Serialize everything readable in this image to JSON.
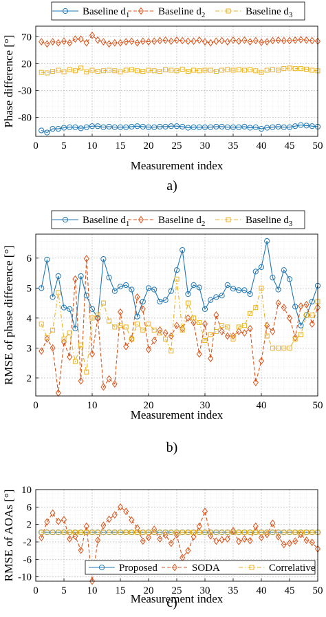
{
  "colors": {
    "d1": "#1f77b4",
    "d2": "#d95319",
    "d3": "#edb120",
    "proposed": "#1f77b4",
    "soda": "#d95319",
    "correlative": "#edb120"
  },
  "icons": {
    "d1": "circle-marker",
    "d2": "diamond-marker",
    "d3": "square-marker"
  },
  "chart_data": [
    {
      "panel": "a)",
      "type": "line",
      "xlabel": "Measurement index",
      "ylabel": "Phase difference [°]",
      "xlim": [
        0,
        50
      ],
      "ylim": [
        -115,
        90
      ],
      "xticks": [
        0,
        5,
        10,
        15,
        20,
        25,
        30,
        35,
        40,
        45,
        50
      ],
      "yticks": [
        70,
        20,
        -30,
        -80
      ],
      "grid": true,
      "legend": {
        "placement": "top-outside"
      },
      "series": [
        {
          "name": "Baseline d",
          "subscript": "1",
          "marker": "circle",
          "line": "solid",
          "values": [
            -104,
            -108,
            -101,
            -101,
            -99,
            -98,
            -98,
            -100,
            -98,
            -96,
            -96,
            -98,
            -97,
            -98,
            -98,
            -98,
            -97,
            -96,
            -97,
            -98,
            -98,
            -97,
            -97,
            -96,
            -96,
            -97,
            -99,
            -98,
            -98,
            -98,
            -98,
            -97,
            -97,
            -98,
            -98,
            -98,
            -97,
            -99,
            -98,
            -101,
            -99,
            -98,
            -97,
            -98,
            -98,
            -96,
            -94,
            -95,
            -96,
            -97
          ]
        },
        {
          "name": "Baseline d",
          "subscript": "2",
          "marker": "diamond",
          "line": "dashed",
          "values": [
            61,
            57,
            61,
            59,
            62,
            59,
            66,
            66,
            59,
            73,
            64,
            61,
            57,
            59,
            59,
            61,
            62,
            59,
            62,
            61,
            62,
            63,
            64,
            62,
            64,
            63,
            62,
            62,
            64,
            61,
            59,
            62,
            63,
            61,
            64,
            62,
            64,
            61,
            63,
            60,
            61,
            63,
            64,
            63,
            63,
            64,
            65,
            64,
            63,
            62
          ]
        },
        {
          "name": "Baseline d",
          "subscript": "3",
          "marker": "square",
          "line": "dash-dot",
          "values": [
            4,
            3,
            6,
            8,
            5,
            9,
            7,
            12,
            5,
            8,
            6,
            7,
            8,
            7,
            5,
            8,
            9,
            7,
            6,
            8,
            7,
            6,
            9,
            8,
            7,
            10,
            6,
            8,
            7,
            8,
            8,
            6,
            8,
            9,
            8,
            9,
            8,
            9,
            7,
            4,
            8,
            9,
            8,
            11,
            12,
            11,
            11,
            10,
            8,
            7
          ]
        }
      ]
    },
    {
      "panel": "b)",
      "type": "line",
      "xlabel": "Measurement index",
      "ylabel": "RMSE of phase difference [°]",
      "xlim": [
        0,
        50
      ],
      "ylim": [
        1.4,
        6.8
      ],
      "xticks": [
        0,
        10,
        20,
        30,
        40,
        50
      ],
      "yticks": [
        2,
        3,
        4,
        5,
        6
      ],
      "grid": true,
      "legend": {
        "placement": "top-outside"
      },
      "series": [
        {
          "name": "Baseline d",
          "subscript": "1",
          "marker": "circle",
          "line": "solid",
          "values": [
            5.0,
            5.95,
            4.7,
            5.4,
            4.35,
            4.3,
            3.65,
            5.4,
            4.75,
            4.3,
            4.0,
            5.97,
            5.35,
            4.9,
            5.05,
            5.1,
            4.95,
            4.05,
            4.55,
            5.0,
            4.95,
            4.55,
            4.6,
            4.9,
            5.6,
            6.27,
            4.8,
            5.1,
            5.02,
            4.3,
            4.6,
            4.7,
            4.75,
            5.1,
            4.98,
            4.93,
            4.93,
            4.8,
            5.55,
            5.7,
            6.57,
            5.35,
            4.95,
            5.6,
            5.3,
            4.38,
            3.75,
            4.1,
            4.55,
            5.08
          ]
        },
        {
          "name": "Baseline d",
          "subscript": "2",
          "marker": "diamond",
          "line": "dashed",
          "values": [
            2.9,
            3.3,
            3.0,
            1.5,
            3.2,
            2.7,
            5.3,
            1.9,
            5.98,
            2.8,
            4.0,
            1.7,
            1.97,
            1.8,
            4.2,
            3.05,
            3.3,
            4.7,
            4.3,
            2.95,
            3.25,
            3.6,
            3.5,
            3.4,
            3.75,
            3.65,
            4.0,
            3.85,
            2.8,
            3.8,
            2.65,
            4.1,
            3.55,
            3.4,
            3.4,
            3.55,
            3.5,
            3.65,
            1.85,
            2.57,
            3.75,
            3.55,
            4.5,
            4.35,
            4.0,
            3.35,
            4.4,
            4.45,
            3.8,
            4.35
          ]
        },
        {
          "name": "Baseline d",
          "subscript": "3",
          "marker": "square",
          "line": "dash-dot",
          "values": [
            3.8,
            3.35,
            3.6,
            4.85,
            3.3,
            3.5,
            2.55,
            3.1,
            2.2,
            4.0,
            4.1,
            4.5,
            3.9,
            3.7,
            3.75,
            3.7,
            3.3,
            3.8,
            3.6,
            3.8,
            3.6,
            3.5,
            3.3,
            2.9,
            5.3,
            3.6,
            4.5,
            4.0,
            3.85,
            3.25,
            3.45,
            3.55,
            3.75,
            3.7,
            3.3,
            3.7,
            3.75,
            4.15,
            4.35,
            5.0,
            3.4,
            3.0,
            3.0,
            3.0,
            3.0,
            3.3,
            3.45,
            4.1,
            4.1,
            4.55
          ]
        }
      ]
    },
    {
      "panel": "c)",
      "type": "line",
      "xlabel": "Measurement index",
      "ylabel": "RMSE of AOAs [°]",
      "xlim": [
        0,
        50
      ],
      "ylim": [
        -11,
        10
      ],
      "xticks": [
        0,
        5,
        10,
        15,
        20,
        25,
        30,
        35,
        40,
        45,
        50
      ],
      "yticks": [
        10,
        6,
        2,
        -2,
        -6,
        -10
      ],
      "grid": true,
      "legend": {
        "placement": "bottom-inside"
      },
      "series": [
        {
          "name": "Proposed",
          "marker": "circle",
          "line": "solid",
          "values": [
            0.2,
            0.2,
            0.2,
            0.2,
            0.2,
            0.2,
            0.2,
            0.2,
            0.2,
            0.2,
            0.2,
            0.2,
            0.2,
            0.2,
            0.2,
            0.2,
            0.2,
            0.2,
            0.2,
            0.2,
            0.2,
            0.2,
            0.2,
            0.2,
            0.2,
            0.2,
            0.2,
            0.2,
            0.2,
            0.2,
            0.2,
            0.2,
            0.2,
            0.2,
            0.2,
            0.2,
            0.2,
            0.2,
            0.2,
            0.2,
            0.2,
            0.2,
            0.2,
            0.2,
            0.2,
            0.2,
            0.2,
            0.2,
            0.2,
            0.2
          ]
        },
        {
          "name": "SODA",
          "marker": "diamond",
          "line": "dashed",
          "values": [
            -1.0,
            2.6,
            4.6,
            2.7,
            3.1,
            -1.3,
            -0.7,
            -3.9,
            1.6,
            -11.0,
            -1.6,
            1.8,
            3.2,
            4.2,
            6.0,
            5.0,
            3.0,
            1.2,
            -1.8,
            -1.0,
            0.9,
            -1.3,
            -0.4,
            -2.3,
            -0.4,
            -5.6,
            -4.0,
            -0.8,
            1.6,
            5.0,
            -0.6,
            -1.8,
            -1.5,
            -1.3,
            0.6,
            -1.9,
            -1.3,
            -1.7,
            1.6,
            -1.0,
            -0.3,
            2.3,
            -0.8,
            -2.6,
            -2.3,
            -1.8,
            -0.3,
            -1.6,
            -2.1,
            -3.6
          ]
        },
        {
          "name": "Correlative",
          "marker": "square",
          "line": "dash-dot",
          "values": [
            0.2,
            0.2,
            0.2,
            0.2,
            0.2,
            0.2,
            0.2,
            0.2,
            0.2,
            0.2,
            0.2,
            0.2,
            0.2,
            0.2,
            0.2,
            0.2,
            0.2,
            0.2,
            0.2,
            0.2,
            0.2,
            0.2,
            0.2,
            0.2,
            0.2,
            0.2,
            0.2,
            0.2,
            0.2,
            0.2,
            0.2,
            0.2,
            0.2,
            0.2,
            0.2,
            0.2,
            0.2,
            0.2,
            0.2,
            0.2,
            0.2,
            0.2,
            0.2,
            0.2,
            0.2,
            0.2,
            0.2,
            0.2,
            0.2,
            0.2
          ]
        }
      ]
    }
  ]
}
